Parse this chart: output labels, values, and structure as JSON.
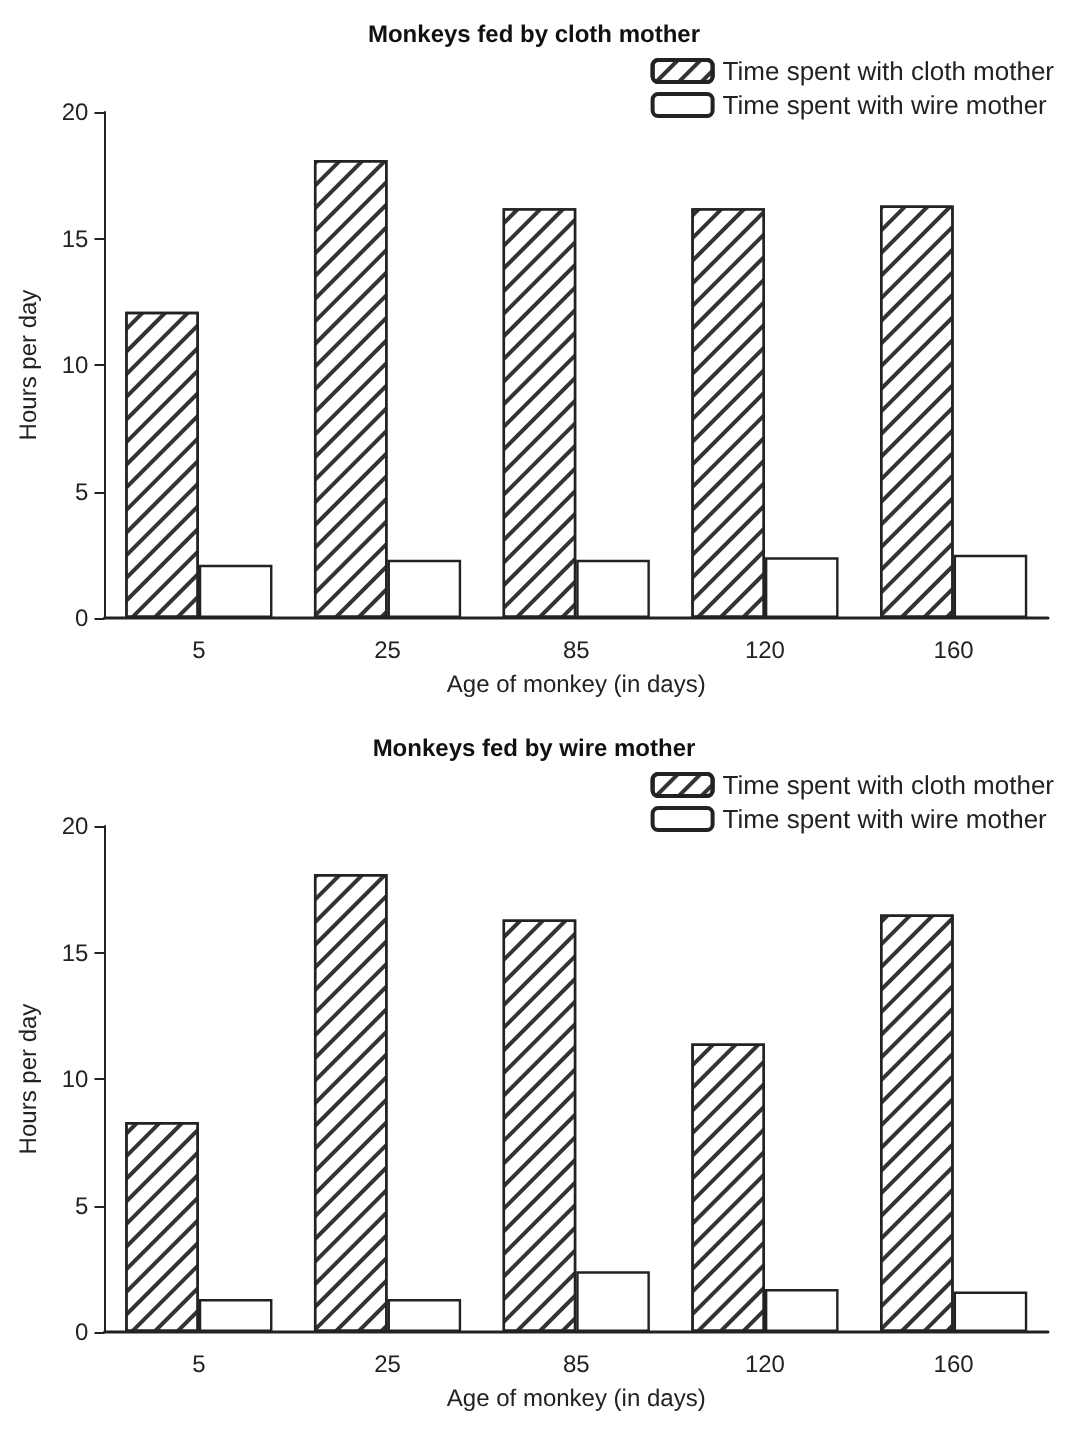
{
  "chart_data": [
    {
      "type": "bar",
      "title": "Monkeys fed by cloth mother",
      "xlabel": "Age of monkey (in days)",
      "ylabel": "Hours per day",
      "categories": [
        "5",
        "25",
        "85",
        "120",
        "160"
      ],
      "series": [
        {
          "name": "Time spent with cloth mother",
          "color": "#ffffff",
          "values": [
            12.1,
            18.1,
            16.2,
            16.2,
            16.3
          ]
        },
        {
          "name": "Time spent with wire mother",
          "color": "#ffffff",
          "values": [
            2.1,
            2.3,
            2.3,
            2.4,
            2.5
          ]
        }
      ],
      "ylim": [
        0,
        20
      ],
      "yticks": [
        0,
        5,
        10,
        15,
        20
      ],
      "grid": false,
      "legend": "top right"
    },
    {
      "type": "bar",
      "title": "Monkeys fed by wire mother",
      "xlabel": "Age of monkey (in days)",
      "ylabel": "Hours per day",
      "categories": [
        "5",
        "25",
        "85",
        "120",
        "160"
      ],
      "series": [
        {
          "name": "Time spent with cloth mother",
          "color": "#ffffff",
          "values": [
            8.3,
            18.1,
            16.3,
            11.4,
            16.5
          ]
        },
        {
          "name": "Time spent with wire mother",
          "color": "#ffffff",
          "values": [
            1.3,
            1.3,
            2.4,
            1.7,
            1.6
          ]
        }
      ],
      "ylim": [
        0,
        20
      ],
      "yticks": [
        0,
        5,
        10,
        15,
        20
      ],
      "grid": false,
      "legend": "top right"
    }
  ]
}
